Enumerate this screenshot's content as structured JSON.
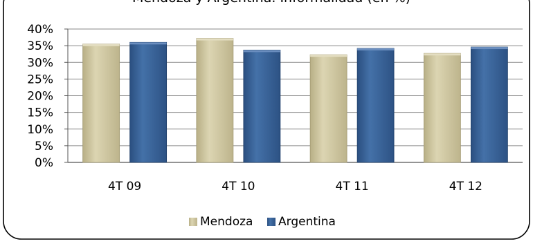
{
  "chart_data": {
    "type": "bar",
    "title": "Mendoza y Argentina. Informalidad (en %)",
    "categories": [
      "4T 09",
      "4T 10",
      "4T 11",
      "4T 12"
    ],
    "series": [
      {
        "name": "Mendoza",
        "values": [
          35.5,
          37.2,
          32.3,
          32.7
        ],
        "color": "#C9C19A"
      },
      {
        "name": "Argentina",
        "values": [
          36.0,
          33.7,
          34.2,
          34.6
        ],
        "color": "#355E93"
      }
    ],
    "ylim": [
      0,
      40
    ],
    "yticks": [
      "0%",
      "5%",
      "10%",
      "15%",
      "20%",
      "25%",
      "30%",
      "35%",
      "40%"
    ],
    "ytick_values": [
      0,
      5,
      10,
      15,
      20,
      25,
      30,
      35,
      40
    ],
    "grid": true,
    "legend_position": "bottom"
  }
}
